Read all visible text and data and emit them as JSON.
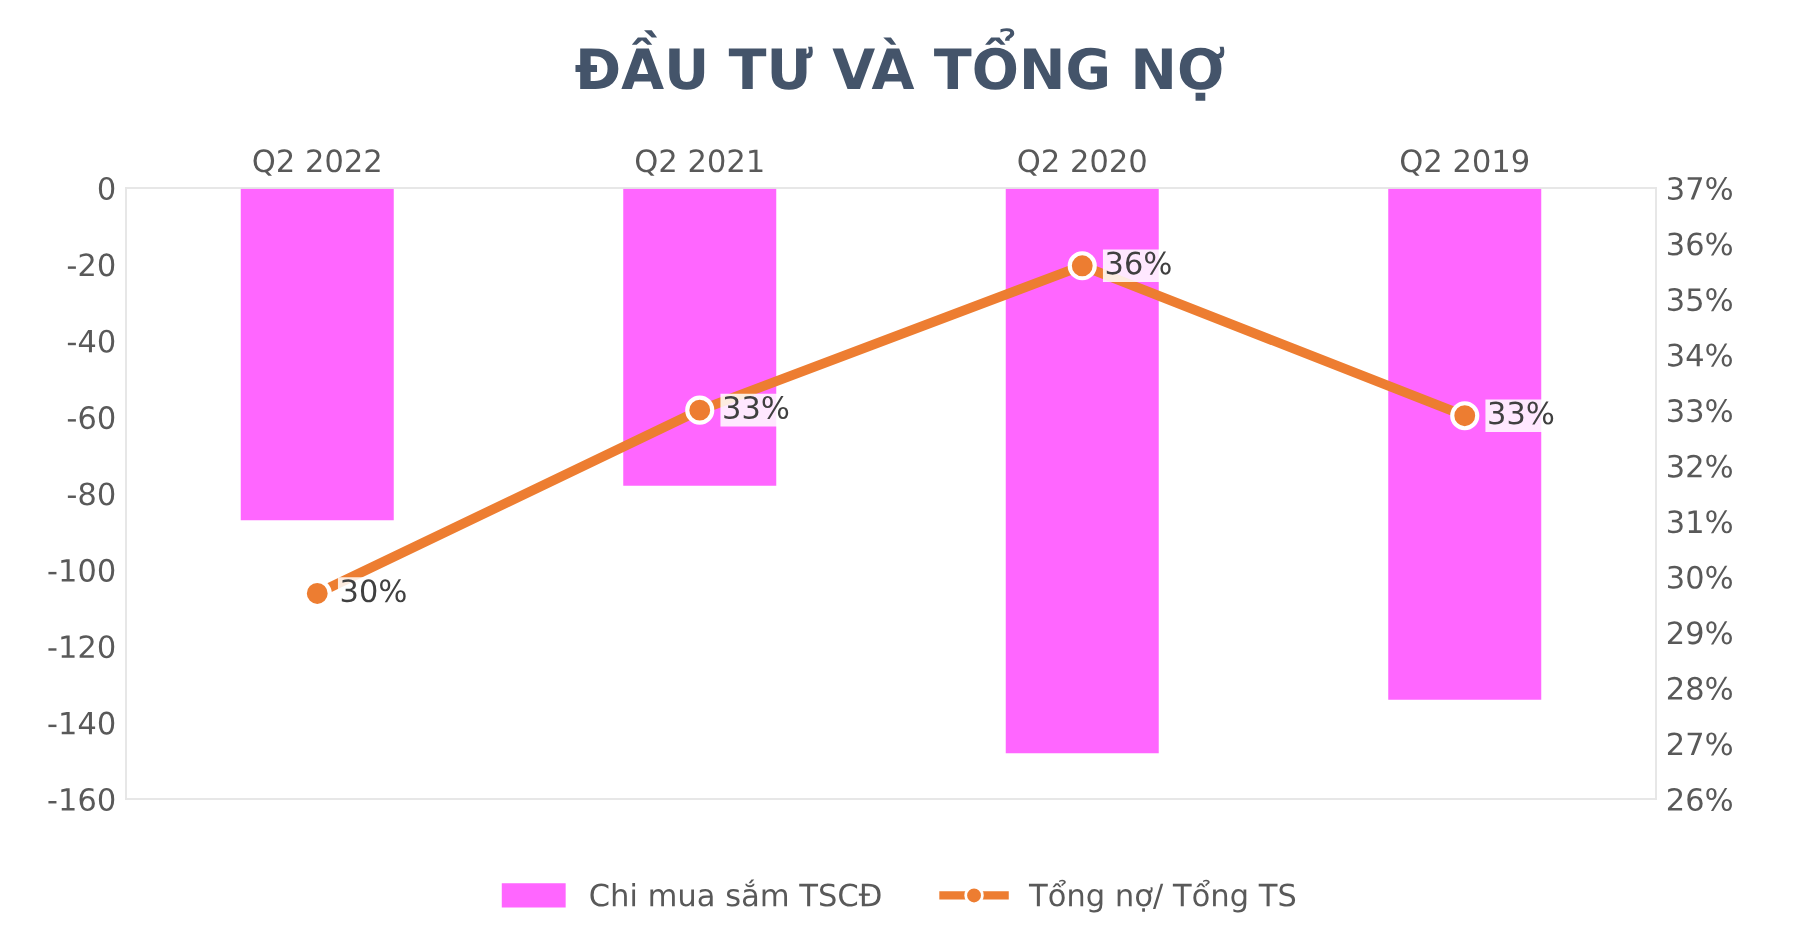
{
  "chart_data": {
    "type": "bar",
    "title": "ĐẦU TƯ VÀ TỔNG NỢ",
    "categories": [
      "Q2 2022",
      "Q2 2021",
      "Q2 2020",
      "Q2 2019"
    ],
    "series": [
      {
        "name": "Chi mua sắm TSCĐ",
        "color": "#ff66ff",
        "values": [
          -87,
          -78,
          -148,
          -134
        ]
      },
      {
        "name": "Tổng nợ/ Tổng TS",
        "type": "line",
        "axis": "y2",
        "color": "#ed7d31",
        "marker": "circle",
        "values": [
          29.7,
          33.0,
          35.6,
          32.9
        ],
        "value_labels": [
          "30%",
          "33%",
          "36%",
          "33%"
        ]
      }
    ],
    "ylim": [
      -160,
      0
    ],
    "yticks": [
      -160,
      -140,
      -120,
      -100,
      -80,
      -60,
      -40,
      -20,
      0
    ],
    "y2lim": [
      26,
      37
    ],
    "y2ticks": [
      {
        "value": 26,
        "label": "26%"
      },
      {
        "value": 27,
        "label": "27%"
      },
      {
        "value": 28,
        "label": "28%"
      },
      {
        "value": 29,
        "label": "29%"
      },
      {
        "value": 30,
        "label": "30%"
      },
      {
        "value": 31,
        "label": "31%"
      },
      {
        "value": 32,
        "label": "32%"
      },
      {
        "value": 33,
        "label": "33%"
      },
      {
        "value": 34,
        "label": "34%"
      },
      {
        "value": 35,
        "label": "35%"
      },
      {
        "value": 36,
        "label": "36%"
      },
      {
        "value": 37,
        "label": "37%"
      }
    ],
    "legend": "bottom",
    "grid": false
  }
}
